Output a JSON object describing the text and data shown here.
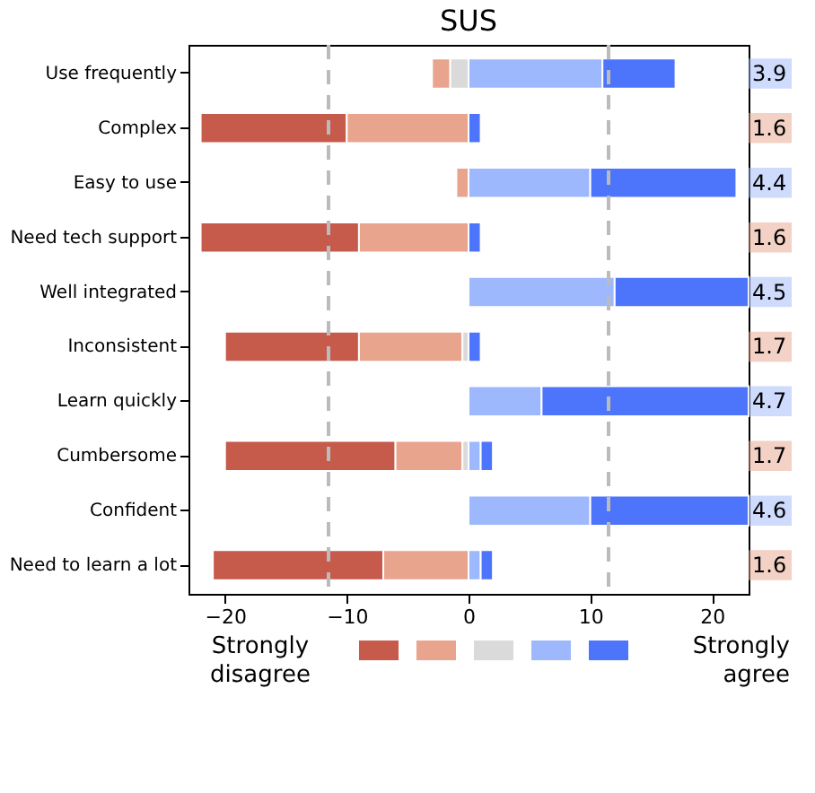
{
  "chart_data": {
    "type": "bar",
    "title": "SUS",
    "orientation": "horizontal",
    "stacked": true,
    "grid": false,
    "categories": [
      "Use frequently",
      "Complex",
      "Easy to use",
      "Need tech support",
      "Well integrated",
      "Inconsistent",
      "Learn quickly",
      "Cumbersome",
      "Confident",
      "Need to learn a lot"
    ],
    "series": [
      {
        "color": "#c65a4b",
        "values": [
          null,
          -12,
          null,
          -13,
          null,
          -11,
          null,
          -14,
          null,
          -14
        ]
      },
      {
        "color": "#e8a48c",
        "values": [
          -1.5,
          -10,
          -1,
          -9,
          null,
          -8.5,
          null,
          -5.5,
          null,
          -7
        ]
      },
      {
        "color": "#dadada",
        "values": [
          -1.5,
          null,
          null,
          null,
          null,
          -0.5,
          null,
          -0.5,
          null,
          null
        ]
      },
      {
        "color": "#9db8fc",
        "values": [
          11,
          null,
          10,
          null,
          12,
          null,
          6,
          1,
          10,
          1
        ]
      },
      {
        "color": "#4d75fc",
        "values": [
          6,
          1,
          12,
          1,
          11,
          1,
          17,
          1,
          13,
          1
        ]
      }
    ],
    "xlim": [
      -23,
      23
    ],
    "xticks": [
      -20,
      -10,
      0,
      10,
      20
    ],
    "ref_lines": [
      {
        "axis": "x",
        "value": -11.5,
        "color": "#bbbbbb",
        "line_style": "dashed"
      },
      {
        "axis": "x",
        "value": 11.5,
        "color": "#bbbbbb",
        "line_style": "dashed"
      }
    ],
    "annotations": [
      {
        "text": "3.9",
        "y": "Use frequently"
      },
      {
        "text": "1.6",
        "y": "Complex"
      },
      {
        "text": "4.4",
        "y": "Easy to use"
      },
      {
        "text": "1.6",
        "y": "Need tech support"
      },
      {
        "text": "4.5",
        "y": "Well integrated"
      },
      {
        "text": "1.7",
        "y": "Inconsistent"
      },
      {
        "text": "4.7",
        "y": "Learn quickly"
      },
      {
        "text": "1.7",
        "y": "Cumbersome"
      },
      {
        "text": "4.6",
        "y": "Confident"
      },
      {
        "text": "1.6",
        "y": "Need to learn a lot"
      },
      "Strongly disagree",
      "Strongly agree"
    ]
  }
}
